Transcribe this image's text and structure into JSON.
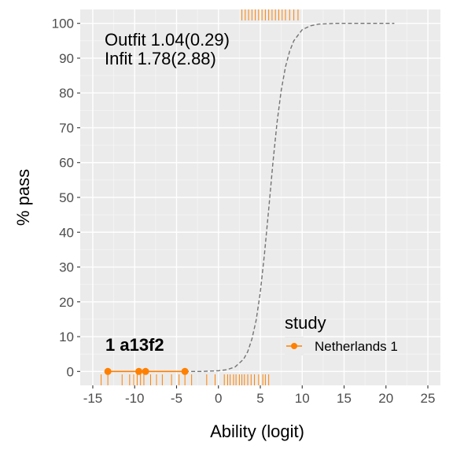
{
  "chart_data": {
    "type": "line",
    "xlabel": "Ability (logit)",
    "ylabel": "% pass",
    "xlim": [
      -16.5,
      26.5
    ],
    "ylim": [
      -4,
      104
    ],
    "x_ticks": [
      -15,
      -10,
      -5,
      0,
      5,
      10,
      15,
      20,
      25
    ],
    "y_ticks": [
      0,
      10,
      20,
      30,
      40,
      50,
      60,
      70,
      80,
      90,
      100
    ],
    "grid": true,
    "annotations": {
      "outfit": "Outfit 1.04(0.29)",
      "infit": "Infit  1.78(2.88)",
      "item_label": "1  a13f2"
    },
    "model_curve": {
      "style": "dashed",
      "color": "#737373",
      "x": [
        -4,
        -2,
        0,
        1,
        2,
        3,
        3.5,
        4,
        4.5,
        5,
        5.5,
        6,
        6.5,
        7,
        7.5,
        8,
        8.5,
        9,
        10,
        11,
        12,
        14,
        16,
        18,
        21
      ],
      "y": [
        0,
        0,
        0.2,
        0.5,
        1.3,
        3.5,
        5.7,
        9.3,
        14.7,
        22.8,
        33.8,
        46.7,
        59.9,
        71.6,
        80.8,
        87.5,
        92.0,
        95.0,
        98.2,
        99.3,
        99.8,
        100,
        100,
        100,
        100
      ]
    },
    "series": [
      {
        "name": "Netherlands 1",
        "color": "#ff8000",
        "x": [
          -13.2,
          -9.5,
          -8.7,
          -4
        ],
        "y": [
          0,
          0,
          0,
          0
        ]
      }
    ],
    "rug_top": [
      2.8,
      3.2,
      3.6,
      4,
      4.4,
      4.8,
      5.2,
      5.6,
      6,
      6.4,
      6.8,
      7.2,
      7.6,
      8,
      8.5,
      9,
      9.5
    ],
    "rug_bottom": [
      -14,
      -13.2,
      -11.5,
      -10.6,
      -10.1,
      -9.7,
      -9.3,
      -8.9,
      -8.1,
      -7.4,
      -6.7,
      -5.6,
      -4.7,
      -4,
      -3.2,
      -1.4,
      -0.4,
      0.7,
      1.1,
      1.4,
      1.8,
      2.1,
      2.5,
      2.8,
      3.1,
      3.5,
      3.9,
      4.3,
      4.8,
      5.3,
      5.6,
      6
    ],
    "legend": {
      "title": "study",
      "placement": "bottom-right",
      "items": [
        {
          "label": "Netherlands 1",
          "color": "#ff8000"
        }
      ]
    }
  }
}
